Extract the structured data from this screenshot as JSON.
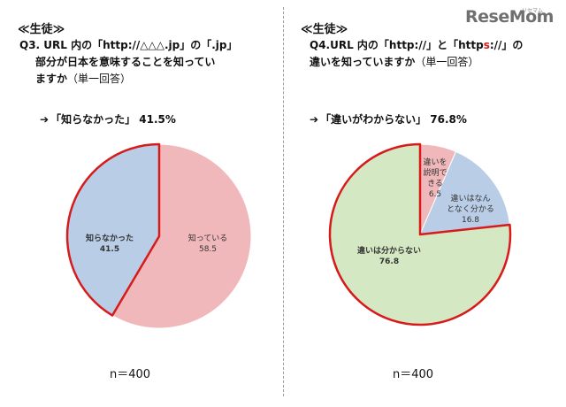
{
  "logo": {
    "text": "ReseMom",
    "subtext": "リセマム"
  },
  "left": {
    "tag": "≪生徒≫",
    "question_prefix": "Q3.",
    "question_line1_rest": "URL 内の「http://△△△.jp」の「.jp」",
    "question_line2": "部分が日本を意味することを知ってい",
    "question_line3": "ますか",
    "question_sub": "（単一回答）",
    "highlight_arrow": "➔",
    "highlight": "「知らなかった」 41.5%",
    "n": "n＝400"
  },
  "right": {
    "tag": "≪生徒≫",
    "question_line1_a": "Q4.URL 内の「http://」と「http",
    "question_line1_s": "s",
    "question_line1_b": "://」の",
    "question_line2": "違いを知っていますか",
    "question_sub": "（単一回答）",
    "highlight_arrow": "➔",
    "highlight": "「違いがわからない」 76.8%",
    "n": "n＝400"
  },
  "chart_data": [
    {
      "type": "pie",
      "start": "top",
      "direction": "clockwise",
      "slices": [
        {
          "label": "知っている",
          "value": 58.5,
          "display": "58.5",
          "color": "#f0b8ba",
          "emphasized": false
        },
        {
          "label": "知らなかった",
          "value": 41.5,
          "display": "41.5",
          "color": "#b9cde6",
          "emphasized": true
        }
      ]
    },
    {
      "type": "pie",
      "start": "top",
      "direction": "clockwise",
      "slices": [
        {
          "label_lines": [
            "違いを",
            "説明で",
            "きる"
          ],
          "value": 6.5,
          "display": "6.5",
          "color": "#f0b8ba",
          "emphasized": false
        },
        {
          "label_lines": [
            "違いはなん",
            "となく分かる"
          ],
          "value": 16.8,
          "display": "16.8",
          "color": "#b9cde6",
          "emphasized": false
        },
        {
          "label_lines": [
            "違いは分からない"
          ],
          "value": 76.8,
          "display": "76.8",
          "color": "#d5e8c4",
          "emphasized": true
        }
      ]
    }
  ]
}
